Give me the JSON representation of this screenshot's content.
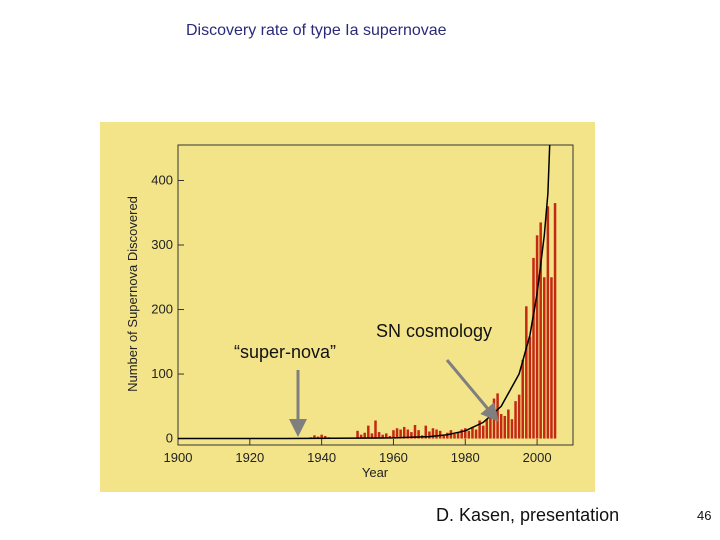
{
  "slide": {
    "title": "Discovery rate of type Ia supernovae",
    "credit": "D. Kasen, presentation",
    "page_number": "46",
    "annotations": {
      "super_nova": "“super-nova”",
      "sn_cosmology": "SN cosmology"
    }
  },
  "colors": {
    "panel": "#f3e48a",
    "bars": "#c42a12",
    "fit": "#000000",
    "arrows": "#7f7f7f",
    "axes": "#333333"
  },
  "chart_data": {
    "type": "bar",
    "title": "",
    "xlabel": "Year",
    "ylabel": "Number of Supernova Discovered",
    "xlim": [
      1900,
      2010
    ],
    "ylim": [
      -10,
      455
    ],
    "xticks": [
      1900,
      1920,
      1940,
      1960,
      1980,
      2000
    ],
    "yticks": [
      0,
      100,
      200,
      300,
      400
    ],
    "x": [
      1921,
      1934,
      1937,
      1938,
      1939,
      1940,
      1941,
      1942,
      1947,
      1950,
      1951,
      1952,
      1953,
      1954,
      1955,
      1956,
      1957,
      1958,
      1959,
      1960,
      1961,
      1962,
      1963,
      1964,
      1965,
      1966,
      1967,
      1968,
      1969,
      1970,
      1971,
      1972,
      1973,
      1974,
      1975,
      1976,
      1977,
      1978,
      1979,
      1980,
      1981,
      1982,
      1983,
      1984,
      1985,
      1986,
      1987,
      1988,
      1989,
      1990,
      1991,
      1992,
      1993,
      1994,
      1995,
      1996,
      1997,
      1998,
      1999,
      2000,
      2001,
      2002,
      2003,
      2004,
      2005
    ],
    "values": [
      1,
      1,
      2,
      5,
      3,
      6,
      4,
      2,
      1,
      12,
      6,
      9,
      20,
      8,
      28,
      10,
      6,
      8,
      4,
      13,
      16,
      14,
      18,
      14,
      10,
      21,
      13,
      5,
      20,
      11,
      16,
      14,
      12,
      4,
      9,
      13,
      7,
      10,
      14,
      16,
      12,
      18,
      14,
      28,
      20,
      30,
      35,
      62,
      70,
      38,
      35,
      45,
      30,
      58,
      68,
      122,
      205,
      158,
      280,
      315,
      335,
      250,
      360,
      250,
      365
    ],
    "fit_curve": {
      "label": "",
      "x": [
        1900,
        1930,
        1960,
        1970,
        1975,
        1980,
        1985,
        1990,
        1995,
        1998,
        2000,
        2002,
        2003,
        2003.5
      ],
      "y": [
        0,
        0,
        1,
        3,
        6,
        12,
        25,
        50,
        100,
        160,
        225,
        315,
        380,
        455
      ]
    }
  }
}
